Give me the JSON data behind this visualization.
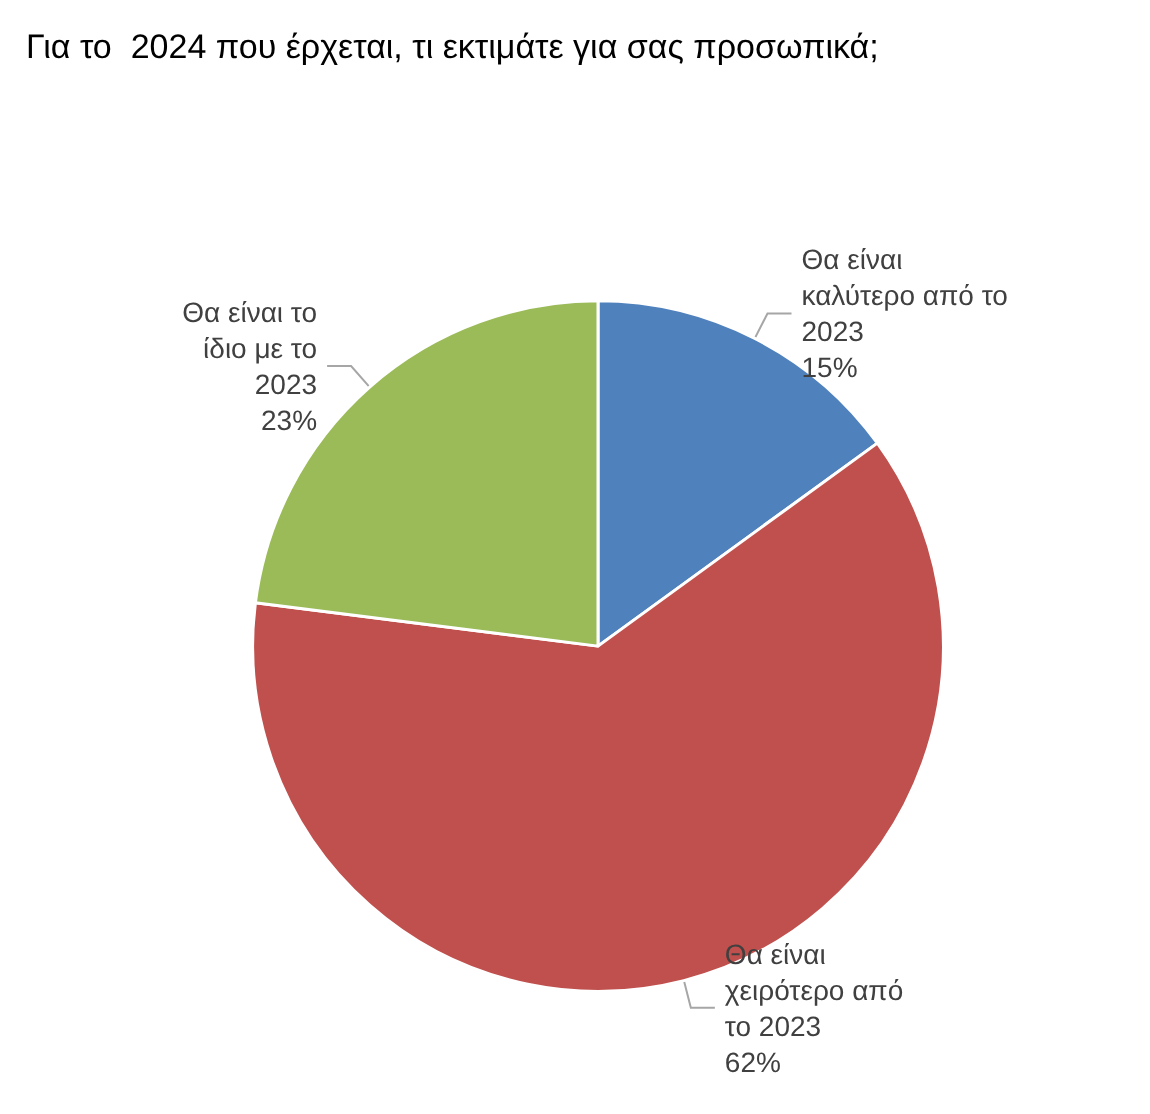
{
  "chart_data": {
    "type": "pie",
    "title": "Για το  2024 που έρχεται, τι εκτιμάτε για σας προσωπικά;",
    "categories": [
      "Θα είναι καλύτερο από το 2023",
      "Θα είναι χειρότερο από το 2023",
      "Θα είναι το ίδιο με το 2023"
    ],
    "values": [
      15,
      62,
      23
    ],
    "value_labels": [
      "15%",
      "62%",
      "23%"
    ],
    "colors": [
      "#4f81bd",
      "#c0504d",
      "#9bbb59"
    ]
  }
}
